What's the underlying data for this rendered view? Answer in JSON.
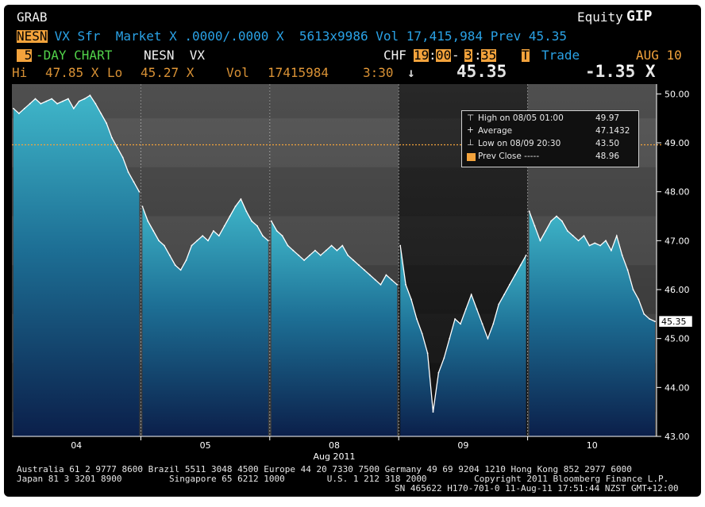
{
  "header": {
    "function_code": "GRAB",
    "brand_prefix": "Equity",
    "brand_code": "GIP",
    "ticker_highlight": "NESN",
    "market_line": " VX Sfr  Market X .0000/.0000 X  5613x9986 Vol 17,415,984 Prev 45.35",
    "days_value": " 5",
    "days_label": "-DAY CHART",
    "chart_ticker": "NESN  VX",
    "currency": "CHF",
    "time_from": "19",
    "time_from_min": "00",
    "time_to_hr": "3",
    "time_to_min": "35",
    "trade_flag": "T",
    "trade_label": "Trade",
    "date": "AUG 10",
    "hi_label": "Hi",
    "hi_value": "47.85 X",
    "lo_label": "Lo",
    "lo_value": "45.27 X",
    "vol_label": "Vol",
    "vol_value": "17415984",
    "last_time": "3:30",
    "arrow": "↓",
    "last_price": "45.35",
    "change": "-1.35 X"
  },
  "legend": {
    "high": "High on 08/05 01:00",
    "high_value": "49.97",
    "average": "Average",
    "average_value": "47.1432",
    "low": "Low on 08/09 20:30",
    "low_value": "43.50",
    "prev_close": "Prev Close -----",
    "prev_close_value": "48.96"
  },
  "footer": {
    "line1": "Australia 61 2 9777 8600 Brazil 5511 3048 4500 Europe 44 20 7330 7500 Germany 49 69 9204 1210 Hong Kong 852 2977 6000",
    "line2a": "Japan 81 3 3201 8900         Singapore 65 6212 1000        U.S. 1 212 318 2000         Copyright 2011 Bloomberg Finance L.P.",
    "line2b": "SN 465622 H170-701-0 11-Aug-11 17:51:44 NZST GMT+12:00"
  },
  "colors": {
    "background": "#000000",
    "panel_light": "#474747",
    "panel_dark": "#1c1c1c",
    "fill_top": "#3fb6c9",
    "fill_bottom": "#0b1f4a",
    "prev_close_line": "#f3a33c",
    "price_line": "#ffffff"
  },
  "chart_data": {
    "type": "area",
    "title": "NESN VX 5-DAY CHART",
    "xlabel": "Aug 2011",
    "x_ticks": [
      "04",
      "05",
      "08",
      "09",
      "10"
    ],
    "ylim": [
      43.0,
      50.2
    ],
    "y_ticks": [
      43.0,
      44.0,
      45.0,
      46.0,
      47.0,
      48.0,
      49.0,
      50.0
    ],
    "y_tick_labels": [
      "43.00",
      "44.00",
      "45.00",
      "46.00",
      "47.00",
      "48.00",
      "49.00",
      "50.00"
    ],
    "prev_close": 48.96,
    "last_label": "45.35",
    "grid": false,
    "series": [
      {
        "name": "NESN VX",
        "day_values": [
          [
            49.7,
            49.6,
            49.7,
            49.8,
            49.9,
            49.8,
            49.85,
            49.9,
            49.8,
            49.85,
            49.9,
            49.7,
            49.85,
            49.9,
            49.97,
            49.8,
            49.6,
            49.4,
            49.1,
            48.9,
            48.7,
            48.4,
            48.2,
            48.0
          ],
          [
            47.7,
            47.4,
            47.2,
            47.0,
            46.9,
            46.7,
            46.5,
            46.4,
            46.6,
            46.9,
            47.0,
            47.1,
            47.0,
            47.2,
            47.1,
            47.3,
            47.5,
            47.7,
            47.85,
            47.6,
            47.4,
            47.3,
            47.1,
            47.0
          ],
          [
            47.4,
            47.2,
            47.1,
            46.9,
            46.8,
            46.7,
            46.6,
            46.7,
            46.8,
            46.7,
            46.8,
            46.9,
            46.8,
            46.9,
            46.7,
            46.6,
            46.5,
            46.4,
            46.3,
            46.2,
            46.1,
            46.3,
            46.2,
            46.1
          ],
          [
            46.9,
            46.1,
            45.8,
            45.4,
            45.1,
            44.7,
            43.5,
            44.3,
            44.6,
            45.0,
            45.4,
            45.3,
            45.6,
            45.9,
            45.6,
            45.3,
            45.0,
            45.3,
            45.7,
            45.9,
            46.1,
            46.3,
            46.5,
            46.7
          ],
          [
            47.6,
            47.3,
            47.0,
            47.2,
            47.4,
            47.5,
            47.4,
            47.2,
            47.1,
            47.0,
            47.1,
            46.9,
            46.95,
            46.9,
            47.0,
            46.8,
            47.1,
            46.7,
            46.4,
            46.0,
            45.8,
            45.5,
            45.4,
            45.35
          ]
        ]
      }
    ]
  }
}
